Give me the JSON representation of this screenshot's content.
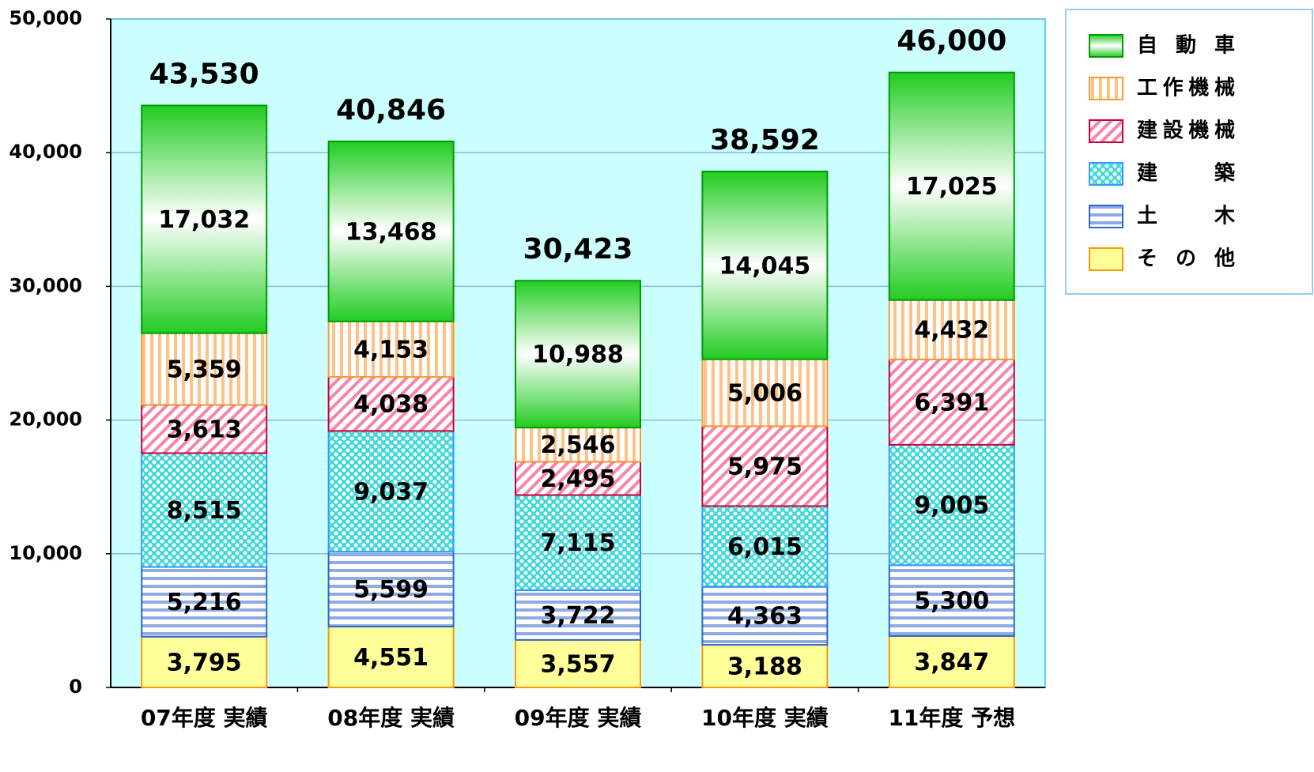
{
  "chart_data": {
    "type": "stacked_bar",
    "categories": [
      "07年度 実績",
      "08年度 実績",
      "09年度 実績",
      "10年度 実績",
      "11年度 予想"
    ],
    "series": [
      {
        "name": "その他",
        "color": "#ffff99",
        "values": [
          3795,
          4551,
          3557,
          3188,
          3847
        ],
        "value_labels": [
          "3,795",
          "4,551",
          "3,557",
          "3,188",
          "3,847"
        ]
      },
      {
        "name": "土木",
        "color": "#3366cc",
        "values": [
          5216,
          5599,
          3722,
          4363,
          5300
        ],
        "value_labels": [
          "5,216",
          "5,599",
          "3,722",
          "4,363",
          "5,300"
        ]
      },
      {
        "name": "建築",
        "color": "#00cccc",
        "values": [
          8515,
          9037,
          7115,
          6015,
          9005
        ],
        "value_labels": [
          "8,515",
          "9,037",
          "7,115",
          "6,015",
          "9,005"
        ]
      },
      {
        "name": "建設機械",
        "color": "#ee3377",
        "values": [
          3613,
          4038,
          2495,
          5975,
          6391
        ],
        "value_labels": [
          "3,613",
          "4,038",
          "2,495",
          "5,975",
          "6,391"
        ]
      },
      {
        "name": "工作機械",
        "color": "#ff9933",
        "values": [
          5359,
          4153,
          2546,
          5006,
          4432
        ],
        "value_labels": [
          "5,359",
          "4,153",
          "2,546",
          "5,006",
          "4,432"
        ]
      },
      {
        "name": "自動車",
        "color": "#22cc22",
        "values": [
          17032,
          13468,
          10988,
          14045,
          17025
        ],
        "value_labels": [
          "17,032",
          "13,468",
          "10,988",
          "14,045",
          "17,025"
        ]
      }
    ],
    "totals": [
      43530,
      40846,
      30423,
      38592,
      46000
    ],
    "total_labels": [
      "43,530",
      "40,846",
      "30,423",
      "38,592",
      "46,000"
    ],
    "ylim": [
      0,
      50000
    ],
    "yticks": [
      0,
      {
        "value": 10000,
        "label": "10,000"
      },
      {
        "value": 20000,
        "label": "20,000"
      },
      {
        "value": 30000,
        "label": "30,000"
      },
      {
        "value": 40000,
        "label": "40,000"
      },
      {
        "value": 50000,
        "label": "50,000"
      }
    ],
    "grid": true,
    "legend": "upper right"
  }
}
